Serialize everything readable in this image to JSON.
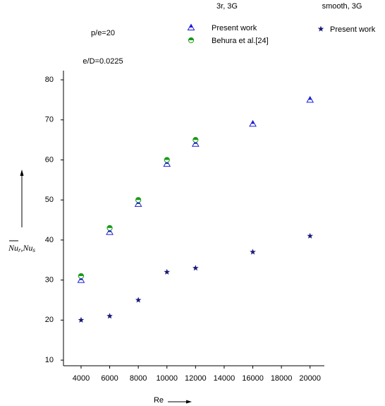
{
  "chart_data": {
    "type": "scatter",
    "annotations": [
      "p/e=20",
      "e/D=0.0225"
    ],
    "legend_groups": [
      "3r, 3G",
      "smooth, 3G"
    ],
    "xlabel": "Re",
    "ylabel_parts": [
      "Nu",
      "r",
      ",",
      "Nu",
      "s"
    ],
    "x": [
      4000,
      6000,
      8000,
      10000,
      12000,
      16000,
      20000
    ],
    "series": [
      {
        "name": "Present work",
        "color": "#1c1cd6",
        "marker": "triangle",
        "values": [
          30,
          42,
          49,
          59,
          64,
          69,
          75
        ]
      },
      {
        "name": "Behura et al.[24]",
        "color": "#1a9a1a",
        "marker": "circle",
        "values": [
          31,
          43,
          50,
          60,
          65,
          null,
          null
        ]
      },
      {
        "name": "Present work",
        "color": "#1a1a78",
        "marker": "star",
        "values": [
          20,
          21,
          25,
          32,
          33,
          37,
          41
        ]
      }
    ],
    "xlim": [
      2770,
      21000
    ],
    "ylim": [
      8.6,
      82.3
    ],
    "xticks": [
      4000,
      6000,
      8000,
      10000,
      12000,
      14000,
      16000,
      18000,
      20000
    ],
    "yticks": [
      10,
      20,
      30,
      40,
      50,
      60,
      70,
      80
    ]
  }
}
